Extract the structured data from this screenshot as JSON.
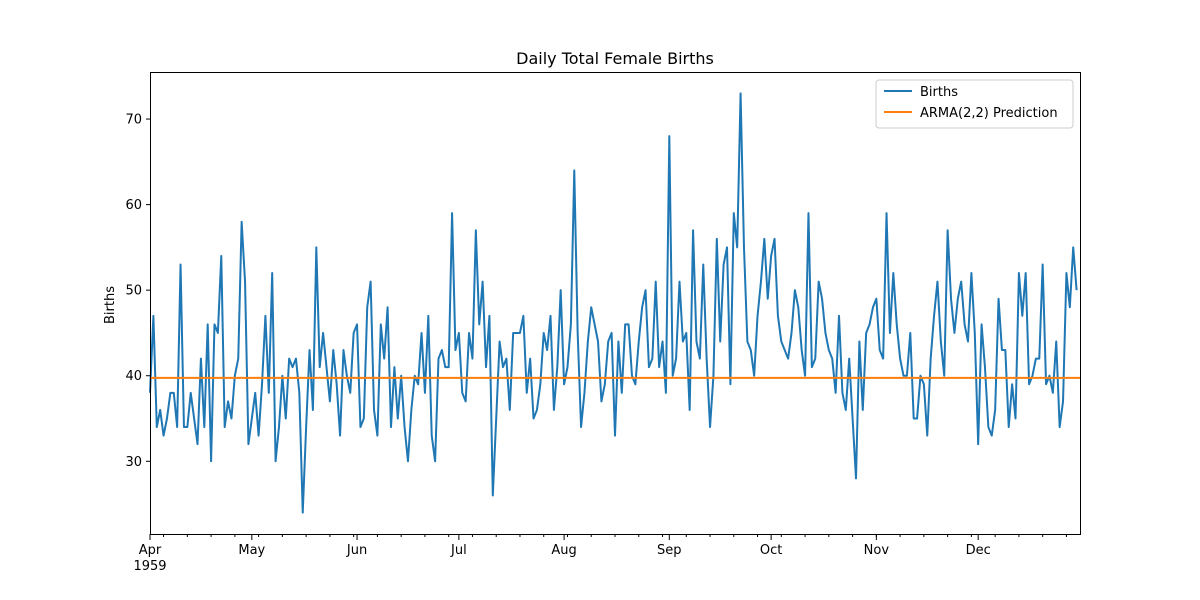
{
  "chart_data": {
    "type": "line",
    "title": "Daily Total Female Births",
    "xlabel": "",
    "ylabel": "Births",
    "x_start": "1959-04-01",
    "x_end": "1959-12-31",
    "ylim": [
      21.5,
      75.5
    ],
    "y_ticks": [
      30,
      40,
      50,
      60,
      70
    ],
    "x_ticks": [
      {
        "date": "1959-04-01",
        "label": "Apr",
        "sublabel": "1959"
      },
      {
        "date": "1959-05-01",
        "label": "May",
        "sublabel": ""
      },
      {
        "date": "1959-06-01",
        "label": "Jun",
        "sublabel": ""
      },
      {
        "date": "1959-07-01",
        "label": "Jul",
        "sublabel": ""
      },
      {
        "date": "1959-08-01",
        "label": "Aug",
        "sublabel": ""
      },
      {
        "date": "1959-09-01",
        "label": "Sep",
        "sublabel": ""
      },
      {
        "date": "1959-10-01",
        "label": "Oct",
        "sublabel": ""
      },
      {
        "date": "1959-11-01",
        "label": "Nov",
        "sublabel": ""
      },
      {
        "date": "1959-12-01",
        "label": "Dec",
        "sublabel": ""
      }
    ],
    "grid": false,
    "legend_position": "top-right",
    "series": [
      {
        "name": "Births",
        "color": "#1f77b4",
        "values": [
          38,
          47,
          34,
          36,
          33,
          35,
          38,
          38,
          34,
          53,
          34,
          34,
          38,
          35,
          32,
          42,
          34,
          46,
          30,
          46,
          45,
          54,
          34,
          37,
          35,
          40,
          42,
          58,
          51,
          32,
          35,
          38,
          33,
          39,
          47,
          38,
          52,
          30,
          34,
          40,
          35,
          42,
          41,
          42,
          38,
          24,
          34,
          43,
          36,
          55,
          41,
          45,
          41,
          37,
          43,
          39,
          33,
          43,
          40,
          38,
          45,
          46,
          34,
          35,
          48,
          51,
          36,
          33,
          46,
          42,
          48,
          34,
          41,
          35,
          40,
          34,
          30,
          36,
          40,
          39,
          45,
          38,
          47,
          33,
          30,
          42,
          43,
          41,
          41,
          59,
          43,
          45,
          38,
          37,
          45,
          42,
          57,
          46,
          51,
          41,
          47,
          26,
          35,
          44,
          41,
          42,
          36,
          45,
          45,
          45,
          47,
          38,
          42,
          35,
          36,
          39,
          45,
          43,
          47,
          36,
          41,
          50,
          39,
          41,
          46,
          64,
          45,
          34,
          38,
          44,
          48,
          46,
          44,
          37,
          39,
          44,
          45,
          33,
          44,
          38,
          46,
          46,
          40,
          39,
          44,
          48,
          50,
          41,
          42,
          51,
          41,
          44,
          38,
          68,
          40,
          42,
          51,
          44,
          45,
          36,
          57,
          44,
          42,
          53,
          42,
          34,
          40,
          56,
          44,
          53,
          55,
          39,
          59,
          55,
          73,
          55,
          44,
          43,
          40,
          47,
          51,
          56,
          49,
          54,
          56,
          47,
          44,
          43,
          42,
          45,
          50,
          48,
          43,
          40,
          59,
          41,
          42,
          51,
          49,
          45,
          43,
          42,
          38,
          47,
          38,
          36,
          42,
          35,
          28,
          44,
          36,
          45,
          46,
          48,
          49,
          43,
          42,
          59,
          45,
          52,
          46,
          42,
          40,
          40,
          45,
          35,
          35,
          40,
          39,
          33,
          42,
          47,
          51,
          44,
          40,
          57,
          49,
          45,
          49,
          51,
          46,
          44,
          52,
          45,
          32,
          46,
          41,
          34,
          33,
          36,
          49,
          43,
          43,
          34,
          39,
          35,
          52,
          47,
          52,
          39,
          40,
          42,
          42,
          53,
          39,
          40,
          38,
          44,
          34,
          37,
          52,
          48,
          55,
          50
        ]
      },
      {
        "name": "ARMA(2,2) Prediction",
        "color": "#ff7f0e",
        "constant": 39.75
      }
    ]
  }
}
